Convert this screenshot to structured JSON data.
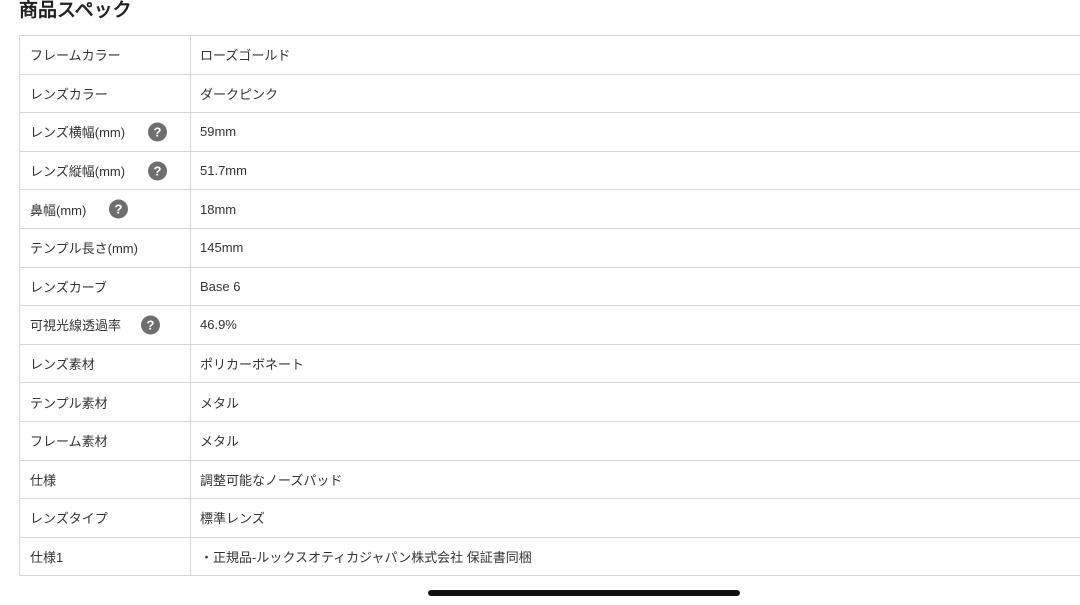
{
  "section_title": "商品スペック",
  "help_icon": "question-circle-icon",
  "rows": [
    {
      "label": "フレームカラー",
      "value": "ローズゴールド",
      "help": false
    },
    {
      "label": "レンズカラー",
      "value": "ダークピンク",
      "help": false
    },
    {
      "label": "レンズ横幅(mm)",
      "value": "59mm",
      "help": true
    },
    {
      "label": "レンズ縦幅(mm)",
      "value": "51.7mm",
      "help": true
    },
    {
      "label": "鼻幅(mm)",
      "value": "18mm",
      "help": true
    },
    {
      "label": "テンプル長さ(mm)",
      "value": "145mm",
      "help": false
    },
    {
      "label": "レンズカーブ",
      "value": "Base 6",
      "help": false
    },
    {
      "label": "可視光線透過率",
      "value": "46.9%",
      "help": true
    },
    {
      "label": "レンズ素材",
      "value": "ポリカーボネート",
      "help": false
    },
    {
      "label": "テンプル素材",
      "value": "メタル",
      "help": false
    },
    {
      "label": "フレーム素材",
      "value": "メタル",
      "help": false
    },
    {
      "label": "仕様",
      "value": "調整可能なノーズパッド",
      "help": false
    },
    {
      "label": "レンズタイプ",
      "value": "標準レンズ",
      "help": false
    },
    {
      "label": "仕様1",
      "value": "・正規品-ルックスオティカジャパン株式会社 保証書同梱",
      "help": false
    }
  ]
}
